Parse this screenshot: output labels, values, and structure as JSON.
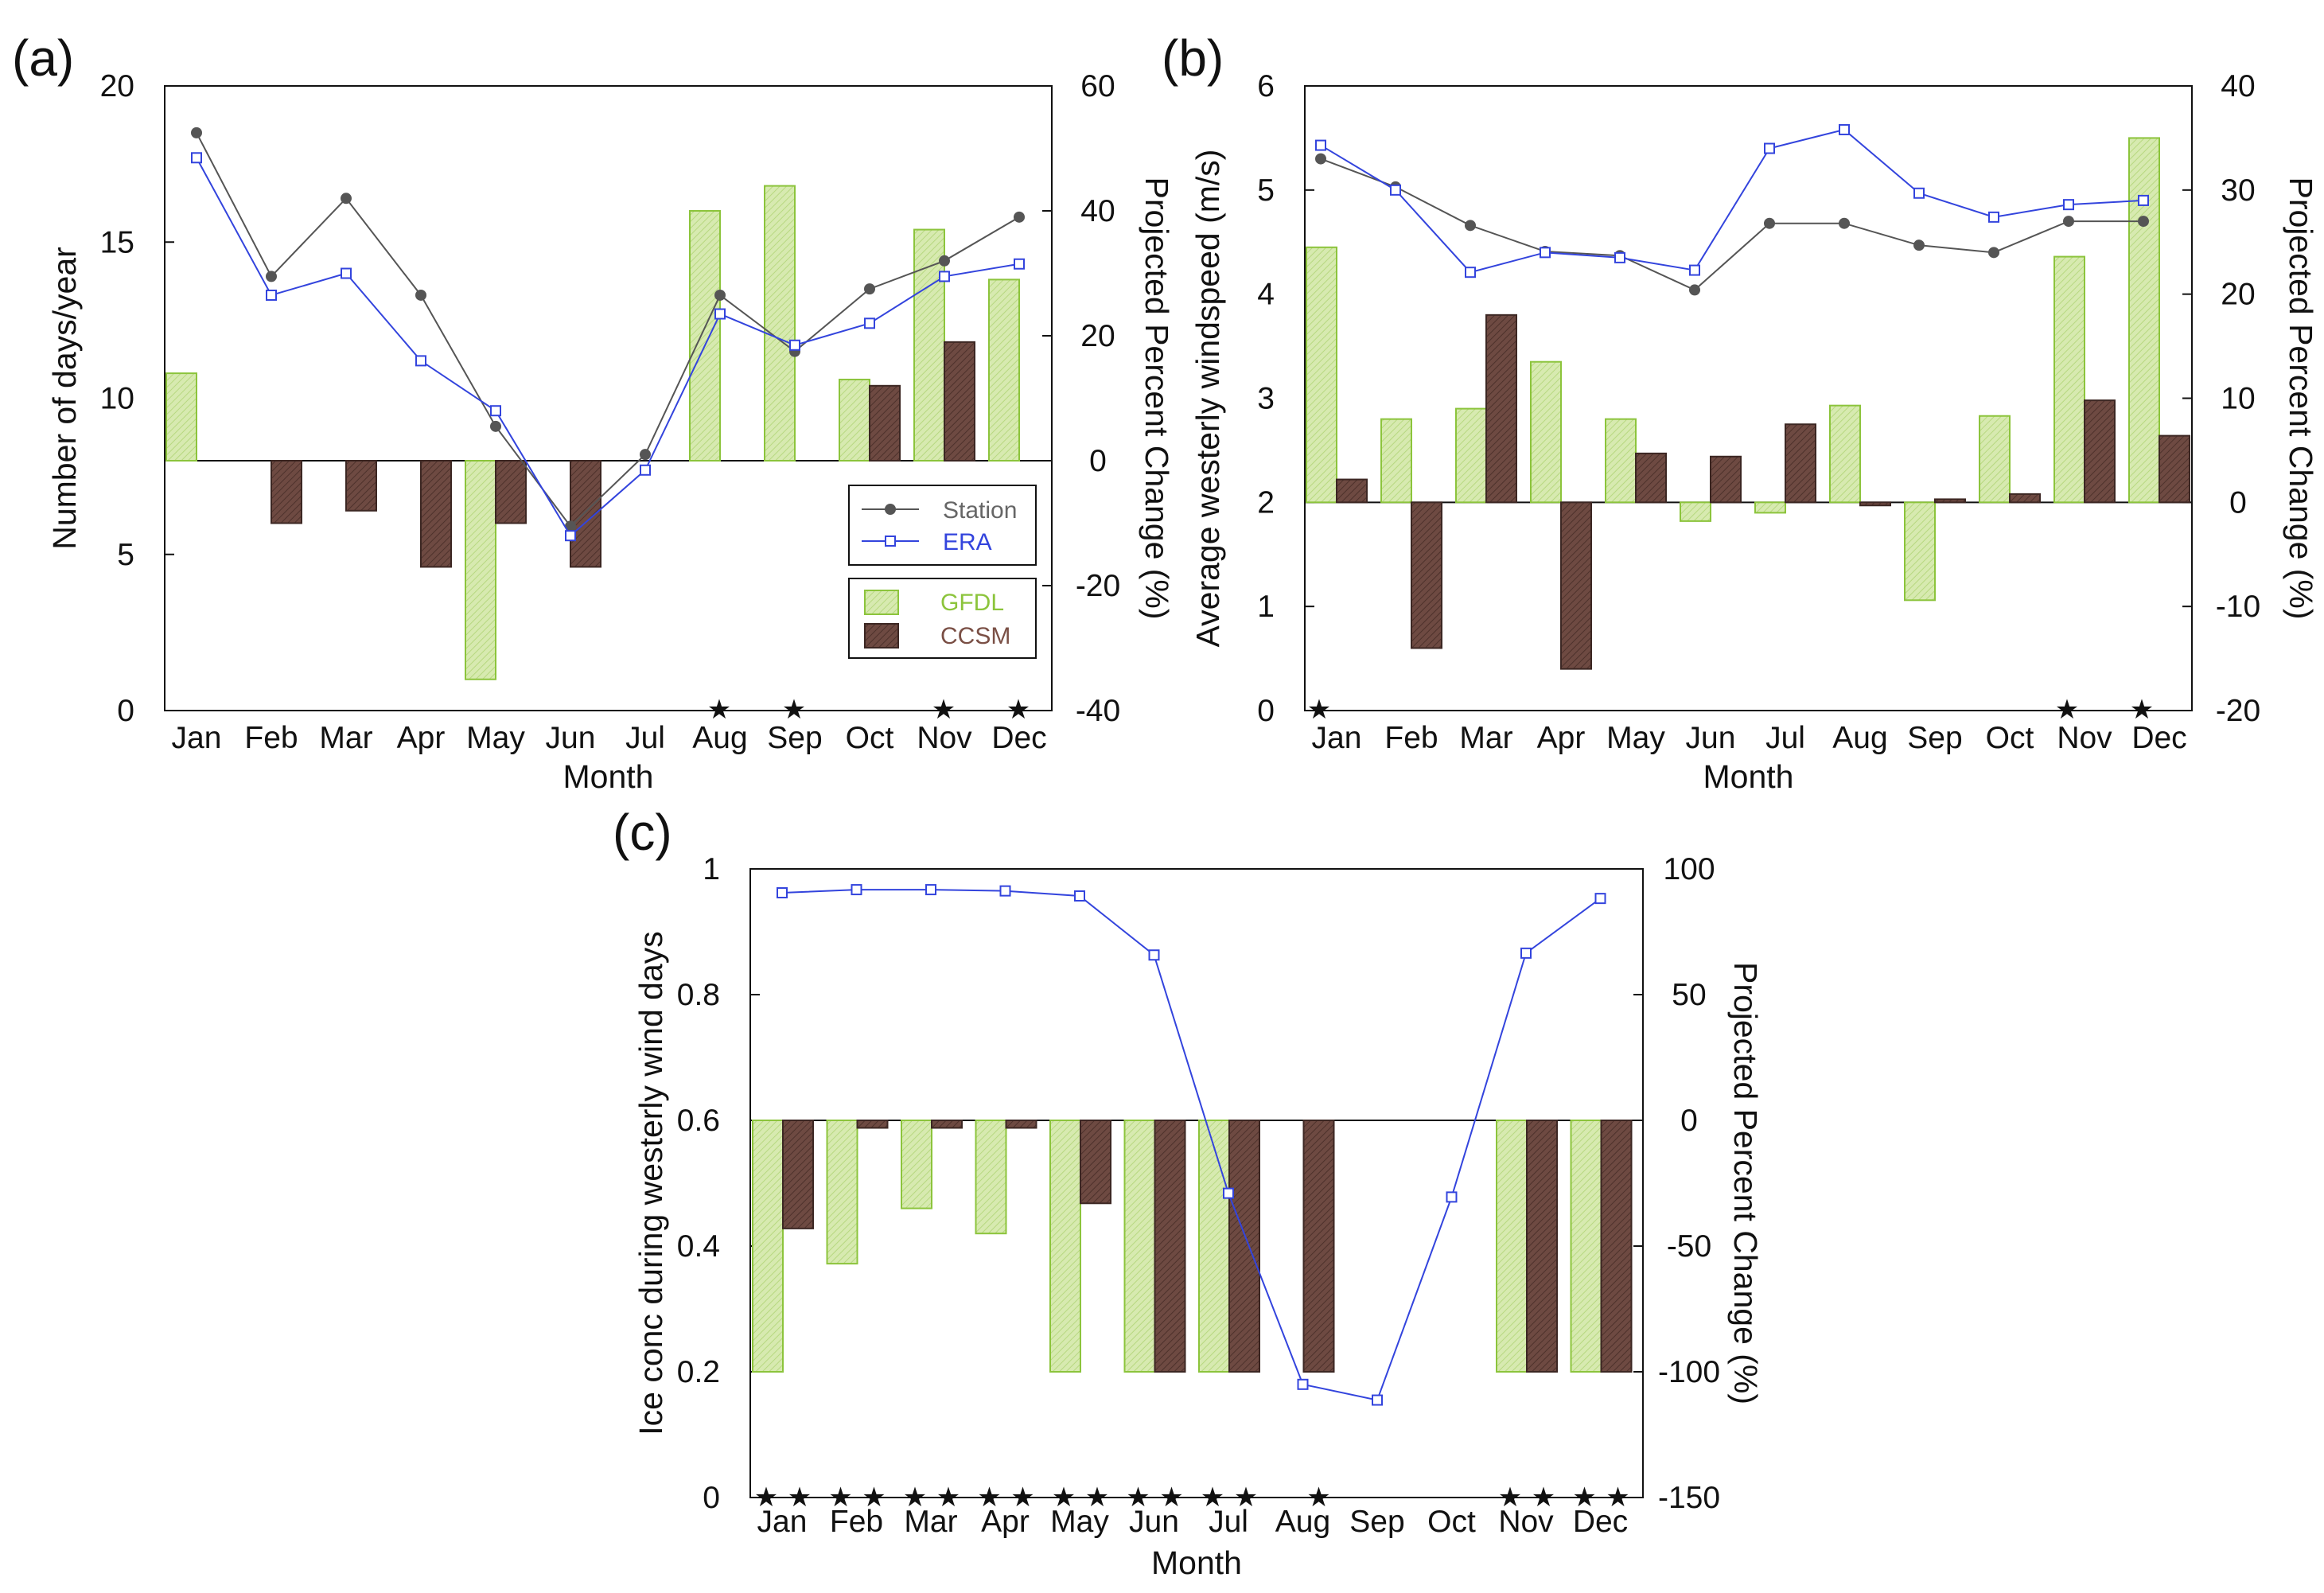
{
  "colors": {
    "station": "#555555",
    "era": "#3344dd",
    "gfdl_fill": "#d7eab0",
    "gfdl_edge": "#8cc43c",
    "ccsm_fill": "#6e4a42",
    "ccsm_edge": "#3c2723",
    "gfdl_text": "#8cc43c",
    "ccsm_text": "#7a4f45",
    "station_text": "#666666"
  },
  "legend": {
    "station": "Station",
    "era": "ERA",
    "gfdl": "GFDL",
    "ccsm": "CCSM"
  },
  "star_symbol": "★",
  "chart_data": [
    {
      "id": "a",
      "panel_label": "(a)",
      "type": "bar+line",
      "xlabel": "Month",
      "ylabel": "Number of days/year",
      "y2label": "Projected Percent Change (%)",
      "categories": [
        "Jan",
        "Feb",
        "Mar",
        "Apr",
        "May",
        "Jun",
        "Jul",
        "Aug",
        "Sep",
        "Oct",
        "Nov",
        "Dec"
      ],
      "ylim": [
        0,
        20
      ],
      "yticks": [
        "0",
        "5",
        "10",
        "15",
        "20"
      ],
      "ytick_values": [
        0,
        5,
        10,
        15,
        20
      ],
      "y2lim": [
        -40,
        60
      ],
      "y2ticks": [
        "-40",
        "-20",
        "0",
        "20",
        "40",
        "60"
      ],
      "y2tick_values": [
        -40,
        -20,
        0,
        20,
        40,
        60
      ],
      "lines": [
        {
          "name": "Station",
          "values": [
            18.5,
            13.9,
            16.4,
            13.3,
            9.1,
            5.9,
            8.2,
            13.3,
            11.5,
            13.5,
            14.4,
            15.8
          ]
        },
        {
          "name": "ERA",
          "values": [
            17.7,
            13.3,
            14.0,
            11.2,
            9.6,
            5.6,
            7.7,
            12.7,
            11.7,
            12.4,
            13.9,
            14.3
          ]
        }
      ],
      "bars": [
        {
          "name": "GFDL",
          "values": [
            14,
            null,
            null,
            null,
            -35,
            null,
            null,
            40,
            44,
            13,
            37,
            29
          ]
        },
        {
          "name": "CCSM",
          "values": [
            null,
            -10,
            -8,
            -17,
            -10,
            -17,
            null,
            null,
            null,
            12,
            19,
            null
          ]
        }
      ],
      "stars": [
        "Aug",
        "Sep",
        "Nov",
        "Dec"
      ],
      "legend_position": "center-right"
    },
    {
      "id": "b",
      "panel_label": "(b)",
      "type": "bar+line",
      "xlabel": "Month",
      "ylabel": "Average westerly windspeed (m/s)",
      "y2label": "Projected Percent Change (%)",
      "categories": [
        "Jan",
        "Feb",
        "Mar",
        "Apr",
        "May",
        "Jun",
        "Jul",
        "Aug",
        "Sep",
        "Oct",
        "Nov",
        "Dec"
      ],
      "ylim": [
        0,
        6
      ],
      "yticks": [
        "0",
        "1",
        "2",
        "3",
        "4",
        "5",
        "6"
      ],
      "ytick_values": [
        0,
        1,
        2,
        3,
        4,
        5,
        6
      ],
      "y2lim": [
        -20,
        40
      ],
      "y2ticks": [
        "-20",
        "-10",
        "0",
        "10",
        "20",
        "30",
        "40"
      ],
      "y2tick_values": [
        -20,
        -10,
        0,
        10,
        20,
        30,
        40
      ],
      "lines": [
        {
          "name": "Station",
          "values": [
            5.3,
            5.03,
            4.66,
            4.41,
            4.37,
            4.04,
            4.68,
            4.68,
            4.47,
            4.4,
            4.7,
            4.7
          ]
        },
        {
          "name": "ERA",
          "values": [
            5.43,
            5.0,
            4.21,
            4.4,
            4.35,
            4.23,
            5.4,
            5.58,
            4.97,
            4.74,
            4.86,
            4.9
          ]
        }
      ],
      "bars": [
        {
          "name": "GFDL",
          "values": [
            24.5,
            8,
            9,
            13.5,
            8,
            -1.8,
            -1,
            9.3,
            -9.4,
            8.3,
            23.6,
            35
          ]
        },
        {
          "name": "CCSM",
          "values": [
            2.2,
            -14,
            18,
            -16,
            4.7,
            4.4,
            7.5,
            -0.3,
            0.3,
            0.8,
            9.8,
            6.4
          ]
        }
      ],
      "stars": [
        "Jan",
        "Nov",
        "Dec"
      ],
      "legend_position": "none"
    },
    {
      "id": "c",
      "panel_label": "(c)",
      "type": "bar+line",
      "xlabel": "Month",
      "ylabel": "Ice conc during westerly wind days",
      "y2label": "Projected Percent Change (%)",
      "categories": [
        "Jan",
        "Feb",
        "Mar",
        "Apr",
        "May",
        "Jun",
        "Jul",
        "Aug",
        "Sep",
        "Oct",
        "Nov",
        "Dec"
      ],
      "ylim": [
        0,
        1
      ],
      "yticks": [
        "0",
        "0.2",
        "0.4",
        "0.6",
        "0.8",
        "1"
      ],
      "ytick_values": [
        0,
        0.2,
        0.4,
        0.6,
        0.8,
        1
      ],
      "y2lim": [
        -150,
        100
      ],
      "y2ticks": [
        "-150",
        "-100",
        "-50",
        "0",
        "50",
        "100"
      ],
      "y2tick_values": [
        -150,
        -100,
        -50,
        0,
        50,
        100
      ],
      "lines": [
        {
          "name": "ERA",
          "values": [
            0.962,
            0.967,
            0.967,
            0.965,
            0.957,
            0.863,
            0.484,
            0.18,
            0.155,
            0.478,
            0.866,
            0.953
          ]
        }
      ],
      "bars": [
        {
          "name": "GFDL",
          "values": [
            -100,
            -57,
            -35,
            -45,
            -100,
            -100,
            -100,
            null,
            null,
            null,
            -100,
            -100
          ]
        },
        {
          "name": "CCSM",
          "values": [
            -43,
            -3,
            -3,
            -3,
            -33,
            -100,
            -100,
            -100,
            null,
            null,
            -100,
            -100
          ]
        }
      ],
      "stars": [
        "Jan",
        "Jan",
        "Feb",
        "Feb",
        "Mar",
        "Mar",
        "Apr",
        "Apr",
        "May",
        "May",
        "Jun",
        "Jun",
        "Jul",
        "Jul",
        "Aug",
        "Nov",
        "Nov",
        "Dec",
        "Dec"
      ],
      "legend_position": "none"
    }
  ]
}
